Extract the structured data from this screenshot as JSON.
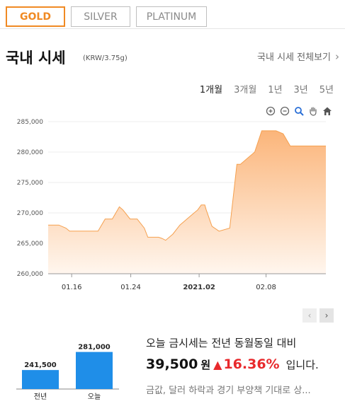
{
  "tabs": [
    {
      "label": "GOLD",
      "active": true
    },
    {
      "label": "SILVER",
      "active": false
    },
    {
      "label": "PLATINUM",
      "active": false
    }
  ],
  "header": {
    "title": "국내 시세",
    "unit": "(KRW/3.75g)",
    "more_label": "국내 시세 전체보기"
  },
  "periods": [
    {
      "label": "1개월",
      "active": true
    },
    {
      "label": "3개월",
      "active": false
    },
    {
      "label": "1년",
      "active": false
    },
    {
      "label": "3년",
      "active": false
    },
    {
      "label": "5년",
      "active": false
    }
  ],
  "tools": [
    "zoom-in-icon",
    "zoom-out-icon",
    "magnify-icon",
    "pan-hand-icon",
    "home-icon"
  ],
  "colors": {
    "accent": "#f08a24",
    "area_top": "#fbb57a",
    "area_bottom": "#fff4ea",
    "up": "#e8292c",
    "bar": "#1f8ee8"
  },
  "chart_data": {
    "type": "area",
    "ylim": [
      260000,
      285000
    ],
    "yticks": [
      "285,000",
      "280,000",
      "275,000",
      "270,000",
      "265,000",
      "260,000"
    ],
    "xticks": [
      {
        "label": "01.16",
        "x": 3.3,
        "bold": false
      },
      {
        "label": "01.24",
        "x": 11.6,
        "bold": false
      },
      {
        "label": "2021.02",
        "x": 21.2,
        "bold": true
      },
      {
        "label": "02.08",
        "x": 30.6,
        "bold": false
      }
    ],
    "xlim": [
      0,
      39
    ],
    "x": [
      0,
      1.5,
      2.5,
      3,
      7,
      8,
      9,
      10,
      10.5,
      11.5,
      12.5,
      13.5,
      14,
      15.5,
      16,
      16.5,
      17.5,
      18.5,
      20,
      21,
      21.5,
      22,
      22.2,
      23,
      24,
      25.5,
      26.5,
      27,
      28,
      29,
      30,
      31,
      31.5,
      32,
      33,
      34,
      35,
      36,
      37,
      38,
      39
    ],
    "y": [
      268000,
      268000,
      267500,
      267000,
      267000,
      269000,
      269000,
      271000,
      270500,
      269000,
      269000,
      267500,
      266000,
      266000,
      265800,
      265500,
      266500,
      268000,
      269500,
      270500,
      271300,
      271300,
      270500,
      267800,
      267000,
      267500,
      278000,
      278000,
      279000,
      280000,
      283500,
      283500,
      283500,
      283500,
      283000,
      281000,
      281000,
      281000,
      281000,
      281000,
      281000
    ]
  },
  "mini_chart": {
    "bars": [
      {
        "label": "전년",
        "value": 241500,
        "value_label": "241,500"
      },
      {
        "label": "오늘",
        "value": 281000,
        "value_label": "281,000"
      }
    ]
  },
  "summary": {
    "line1": "오늘 금시세는 전년 동월동일 대비",
    "diff": "39,500",
    "won": "원",
    "arrow": "▲",
    "pct": "16.36%",
    "end": "입니다.",
    "news": "금값, 달러 하락과 경기 부양책 기대로 상..."
  }
}
